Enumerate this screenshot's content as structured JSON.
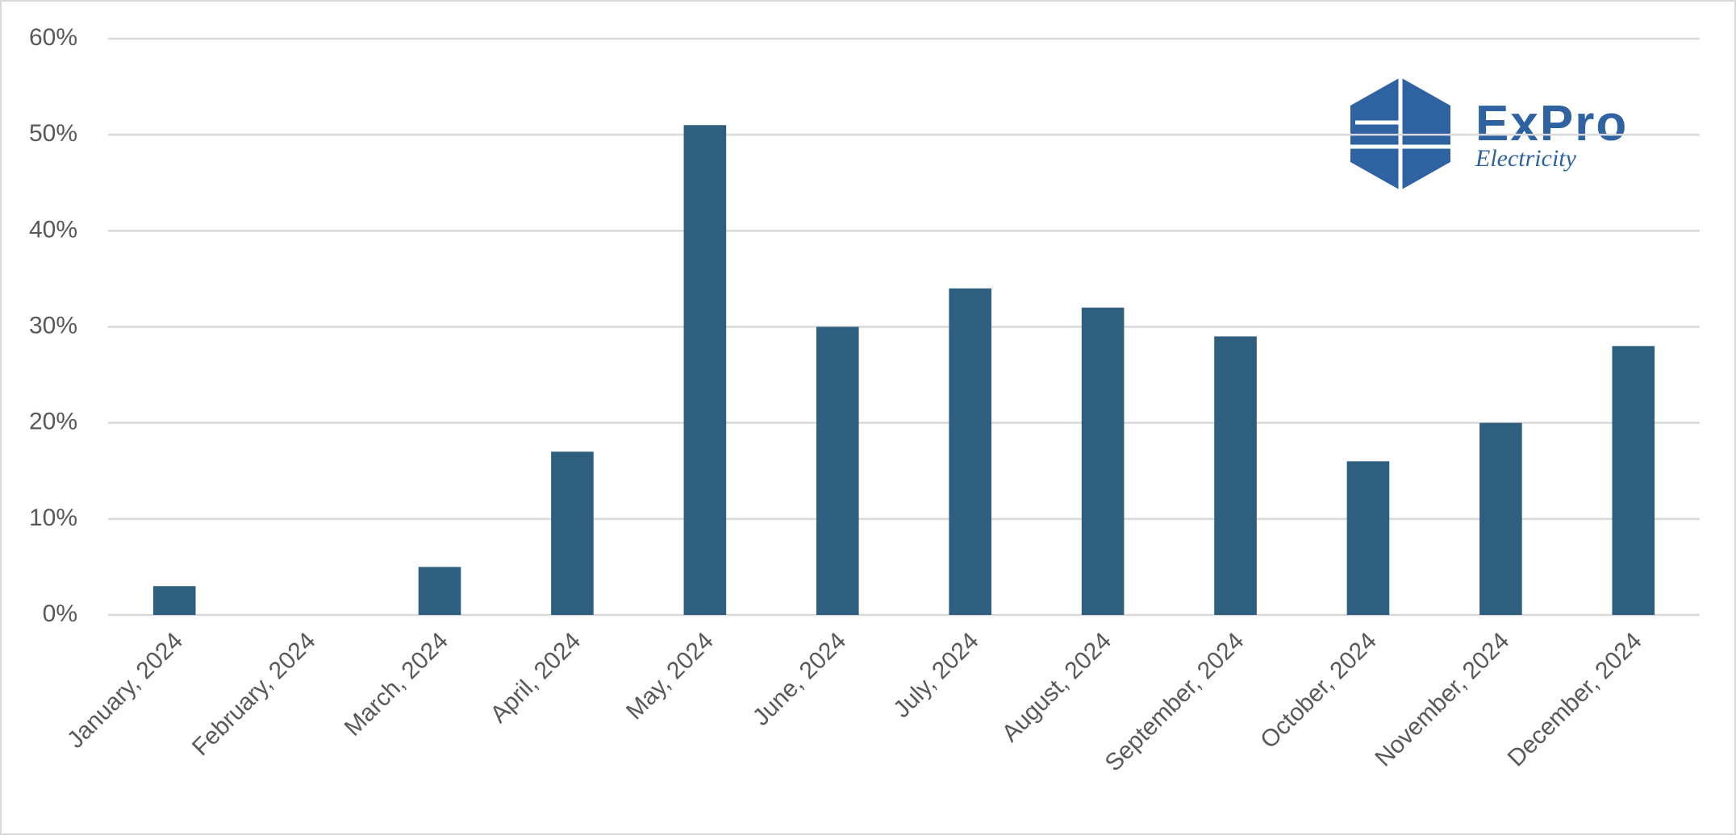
{
  "chart_data": {
    "type": "bar",
    "categories": [
      "January, 2024",
      "February, 2024",
      "March, 2024",
      "April, 2024",
      "May, 2024",
      "June, 2024",
      "July, 2024",
      "August, 2024",
      "September, 2024",
      "October, 2024",
      "November, 2024",
      "December, 2024"
    ],
    "values": [
      3,
      0,
      5,
      17,
      51,
      30,
      34,
      32,
      29,
      16,
      20,
      28
    ],
    "color": "#2e5f7f",
    "ylim": [
      0,
      60
    ],
    "yticks": [
      {
        "value": 0,
        "label": "0%"
      },
      {
        "value": 10,
        "label": "10%"
      },
      {
        "value": 20,
        "label": "20%"
      },
      {
        "value": 30,
        "label": "30%"
      },
      {
        "value": 40,
        "label": "40%"
      },
      {
        "value": 50,
        "label": "50%"
      },
      {
        "value": 60,
        "label": "60%"
      }
    ],
    "grid": true
  },
  "logo": {
    "name": "ExPro",
    "tagline": "Electricity"
  }
}
